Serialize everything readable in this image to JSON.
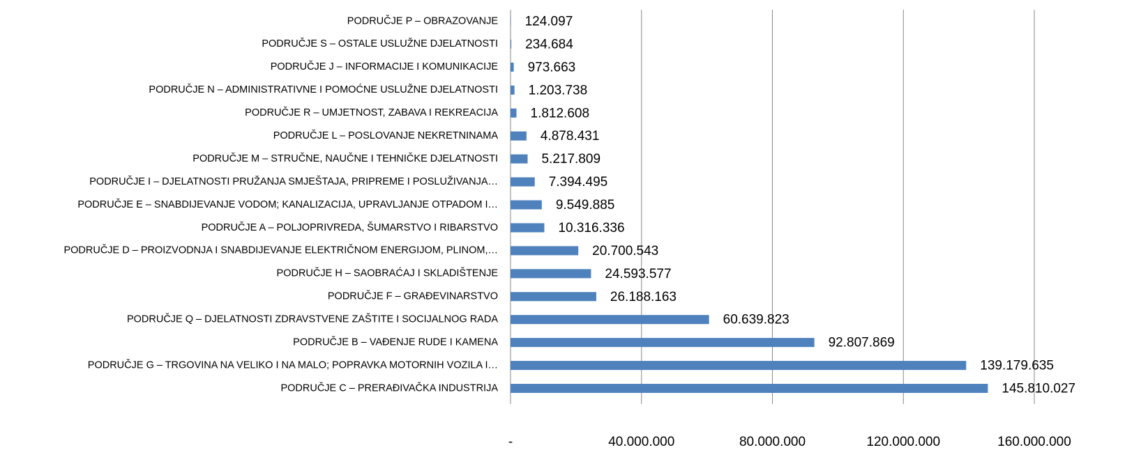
{
  "chart_data": {
    "type": "bar",
    "orientation": "horizontal",
    "categories": [
      "PODRUČJE P – OBRAZOVANJE",
      "PODRUČJE S – OSTALE USLUŽNE DJELATNOSTI",
      "PODRUČJE J – INFORMACIJE I KOMUNIKACIJE",
      "PODRUČJE N – ADMINISTRATIVNE I POMOĆNE USLUŽNE DJELATNOSTI",
      "PODRUČJE R – UMJETNOST, ZABAVA I REKREACIJA",
      "PODRUČJE L – POSLOVANJE NEKRETNINAMA",
      "PODRUČJE M – STRUČNE, NAUČNE I TEHNIČKE DJELATNOSTI",
      "PODRUČJE I – DJELATNOSTI PRUŽANJA SMJEŠTAJA, PRIPREME I POSLUŽIVANJA…",
      "PODRUČJE E – SNABDIJEVANJE VODOM; KANALIZACIJA, UPRAVLJANJE OTPADOM I…",
      "PODRUČJE A – POLJOPRIVREDA,  ŠUMARSTVO I RIBARSTVO",
      "PODRUČJE D – PROIZVODNJA I SNABDIJEVANJE ELEKTRIČNOM ENERGIJOM, PLINOM,…",
      "PODRUČJE H – SAOBRAĆAJ I SKLADIŠTENJE",
      "PODRUČJE F – GRAĐEVINARSTVO",
      "PODRUČJE Q – DJELATNOSTI ZDRAVSTVENE ZAŠTITE I SOCIJALNOG RADA",
      "PODRUČJE B – VAĐENJE RUDE I KAMENA",
      "PODRUČJE G – TRGOVINA NA VELIKO I NA MALO; POPRAVKA MOTORNIH VOZILA I…",
      "PODRUČJE C – PRERAĐIVAČKA INDUSTRIJA"
    ],
    "values": [
      124097,
      234684,
      973663,
      1203738,
      1812608,
      4878431,
      5217809,
      7394495,
      9549885,
      10316336,
      20700543,
      24593577,
      26188163,
      60639823,
      92807869,
      139179635,
      145810027
    ],
    "value_labels": [
      "124.097",
      "234.684",
      "973.663",
      "1.203.738",
      "1.812.608",
      "4.878.431",
      "5.217.809",
      "7.394.495",
      "9.549.885",
      "10.316.336",
      "20.700.543",
      "24.593.577",
      "26.188.163",
      "60.639.823",
      "92.807.869",
      "139.179.635",
      "145.810.027"
    ],
    "color": "#4f81bd",
    "xlim": [
      0,
      160000000
    ],
    "xticks": [
      {
        "value": 0,
        "label": "-"
      },
      {
        "value": 40000000,
        "label": "40.000.000"
      },
      {
        "value": 80000000,
        "label": "80.000.000"
      },
      {
        "value": 120000000,
        "label": "120.000.000"
      },
      {
        "value": 160000000,
        "label": "160.000.000"
      }
    ],
    "grid": true
  }
}
